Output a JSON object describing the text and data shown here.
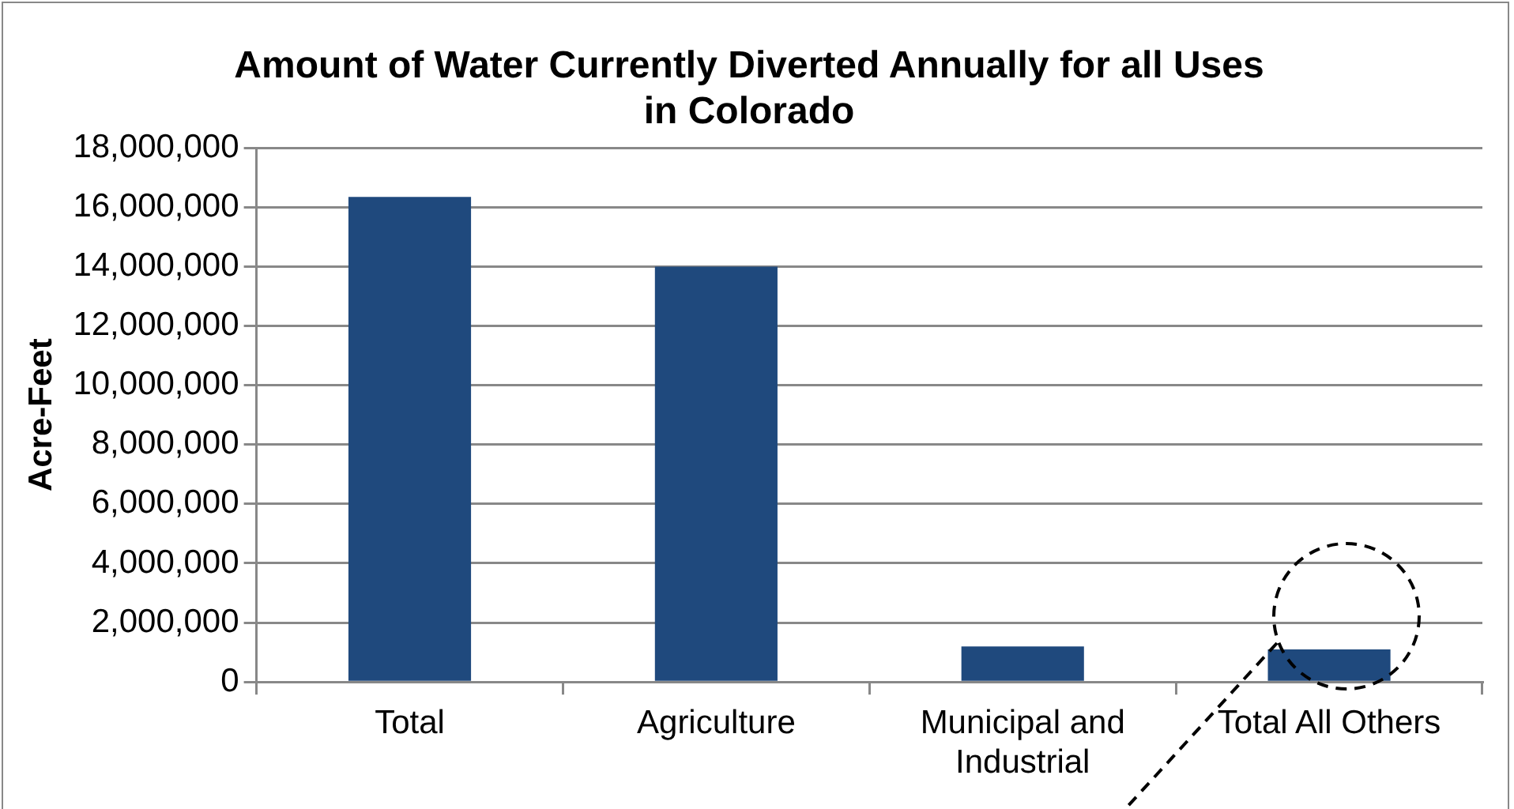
{
  "chart_data": {
    "type": "bar",
    "title": "Amount of Water Currently Diverted Annually for all Uses in Colorado",
    "ylabel": "Acre-Feet",
    "categories": [
      "Total",
      "Agriculture",
      "Municipal and Industrial",
      "Total All Others"
    ],
    "values": [
      16350000,
      14000000,
      1200000,
      1100000
    ],
    "color": "#1f497d",
    "ylim": [
      0,
      18000000
    ],
    "yticks": [
      {
        "value": 0,
        "label": "0"
      },
      {
        "value": 2000000,
        "label": "2,000,000"
      },
      {
        "value": 4000000,
        "label": "4,000,000"
      },
      {
        "value": 6000000,
        "label": "6,000,000"
      },
      {
        "value": 8000000,
        "label": "8,000,000"
      },
      {
        "value": 10000000,
        "label": "10,000,000"
      },
      {
        "value": 12000000,
        "label": "12,000,000"
      },
      {
        "value": 14000000,
        "label": "14,000,000"
      },
      {
        "value": 16000000,
        "label": "16,000,000"
      },
      {
        "value": 18000000,
        "label": "18,000,000"
      }
    ],
    "grid": "y",
    "legend": false
  }
}
